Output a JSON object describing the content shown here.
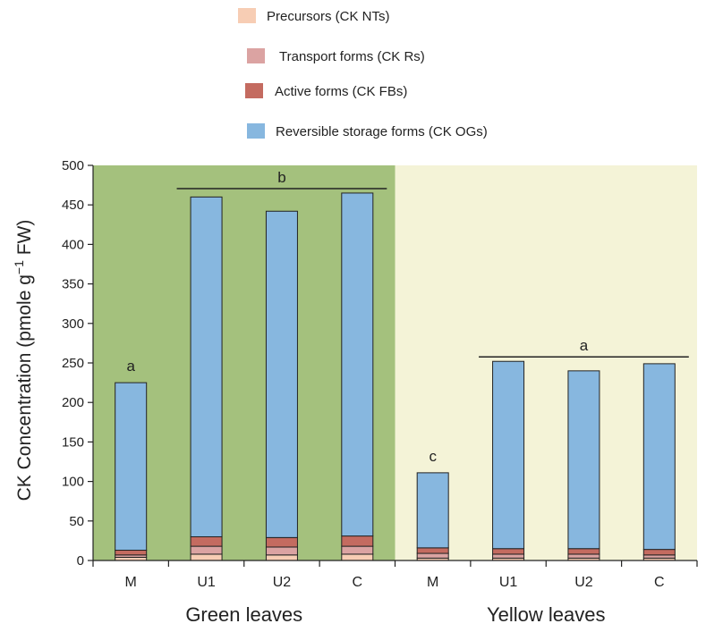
{
  "chart_data": {
    "type": "bar",
    "stacked": true,
    "ylabel_main": "CK Concentration (pmole g",
    "ylabel_sup": "−1",
    "ylabel_end": " FW)",
    "ylim": [
      0,
      500
    ],
    "yticks": [
      0,
      50,
      100,
      150,
      200,
      250,
      300,
      350,
      400,
      450,
      500
    ],
    "grid": false,
    "legend_position": "top-center",
    "groups": [
      {
        "label": "Green leaves",
        "background": "#a4c17d",
        "categories": [
          "M",
          "U1",
          "U2",
          "C"
        ]
      },
      {
        "label": "Yellow leaves",
        "background": "#f4f3d7",
        "categories": [
          "M",
          "U1",
          "U2",
          "C"
        ]
      }
    ],
    "categories": [
      "M",
      "U1",
      "U2",
      "C",
      "M",
      "U1",
      "U2",
      "C"
    ],
    "series": [
      {
        "name": "Precursors (CK NTs)",
        "color": "#f7cdb4",
        "values": [
          4,
          8,
          7,
          8,
          3,
          3,
          3,
          3
        ]
      },
      {
        "name": "Transport forms (CK Rs)",
        "color": "#dba3a2",
        "values": [
          3,
          10,
          10,
          10,
          6,
          5,
          5,
          4
        ]
      },
      {
        "name": "Active forms (CK FBs)",
        "color": "#c46b60",
        "values": [
          6,
          12,
          12,
          13,
          7,
          7,
          7,
          7
        ]
      },
      {
        "name": "Reversible storage forms (CK OGs)",
        "color": "#87b7df",
        "values": [
          212,
          430,
          413,
          434,
          95,
          237,
          225,
          235
        ]
      }
    ],
    "significance": [
      {
        "label": "a",
        "span": [
          0,
          0
        ]
      },
      {
        "label": "b",
        "span": [
          1,
          3
        ]
      },
      {
        "label": "c",
        "span": [
          4,
          4
        ]
      },
      {
        "label": "a",
        "span": [
          5,
          7
        ]
      }
    ]
  }
}
